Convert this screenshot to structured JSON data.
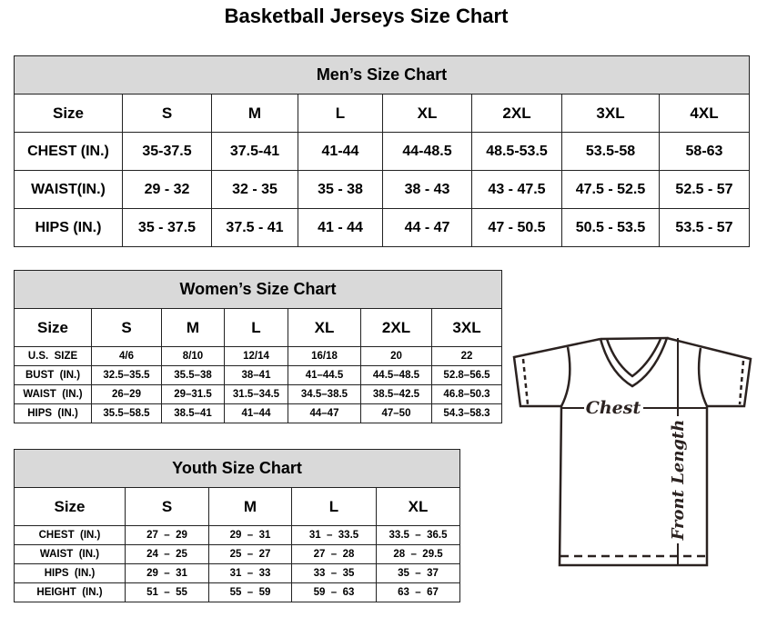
{
  "title": "Basketball Jerseys Size Chart",
  "mens": {
    "title": "Men’s Size Chart",
    "header": [
      "Size",
      "S",
      "M",
      "L",
      "XL",
      "2XL",
      "3XL",
      "4XL"
    ],
    "rows": [
      [
        "CHEST (IN.)",
        "35-37.5",
        "37.5-41",
        "41-44",
        "44-48.5",
        "48.5-53.5",
        "53.5-58",
        "58-63"
      ],
      [
        "WAIST(IN.)",
        "29 - 32",
        "32 - 35",
        "35 - 38",
        "38 - 43",
        "43 - 47.5",
        "47.5 - 52.5",
        "52.5 - 57"
      ],
      [
        "HIPS (IN.)",
        "35 - 37.5",
        "37.5 - 41",
        "41 - 44",
        "44 - 47",
        "47 - 50.5",
        "50.5 - 53.5",
        "53.5 - 57"
      ]
    ]
  },
  "womens": {
    "title": "Women’s Size Chart",
    "header": [
      "Size",
      "S",
      "M",
      "L",
      "XL",
      "2XL",
      "3XL"
    ],
    "rows": [
      [
        "U.S.  SIZE",
        "4/6",
        "8/10",
        "12/14",
        "16/18",
        "20",
        "22"
      ],
      [
        "BUST  (IN.)",
        "32.5–35.5",
        "35.5–38",
        "38–41",
        "41–44.5",
        "44.5–48.5",
        "52.8–56.5"
      ],
      [
        "WAIST  (IN.)",
        "26–29",
        "29–31.5",
        "31.5–34.5",
        "34.5–38.5",
        "38.5–42.5",
        "46.8–50.3"
      ],
      [
        "HIPS  (IN.)",
        "35.5–58.5",
        "38.5–41",
        "41–44",
        "44–47",
        "47–50",
        "54.3–58.3"
      ]
    ]
  },
  "youth": {
    "title": "Youth Size Chart",
    "header": [
      "Size",
      "S",
      "M",
      "L",
      "XL"
    ],
    "rows": [
      [
        "CHEST  (IN.)",
        "27  –  29",
        "29  –  31",
        "31  –  33.5",
        "33.5  –  36.5"
      ],
      [
        "WAIST  (IN.)",
        "24  –  25",
        "25  –  27",
        "27  –  28",
        "28  –  29.5"
      ],
      [
        "HIPS  (IN.)",
        "29  –  31",
        "31  –  33",
        "33  –  35",
        "35  –  37"
      ],
      [
        "HEIGHT  (IN.)",
        "51  –  55",
        "55  –  59",
        "59  –  63",
        "63  –  67"
      ]
    ]
  },
  "diagram": {
    "chest_label": "Chest",
    "length_label": "Front Length",
    "line_color": "#2b2220"
  }
}
